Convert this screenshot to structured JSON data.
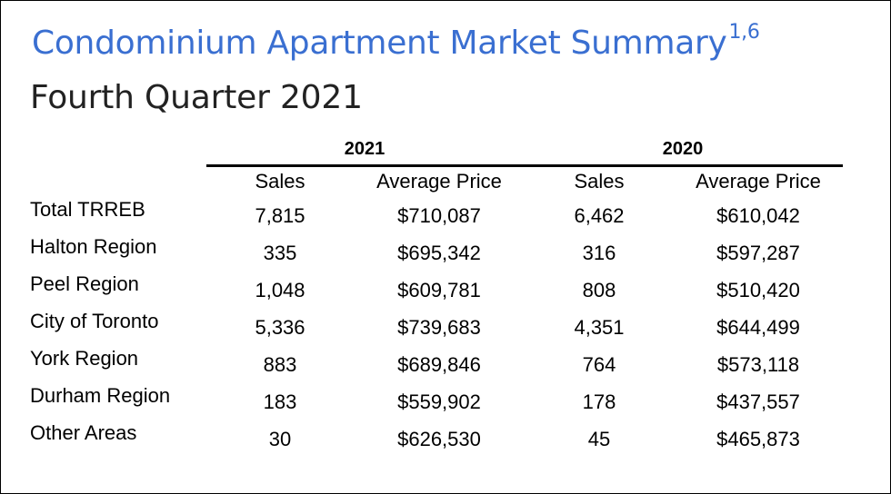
{
  "title": "Condominium Apartment Market Summary",
  "title_superscript": "1,6",
  "subtitle": "Fourth Quarter 2021",
  "years": [
    "2021",
    "2020"
  ],
  "column_headers": [
    "Sales",
    "Average Price",
    "Sales",
    "Average Price"
  ],
  "rows": [
    {
      "region": "Total TRREB",
      "sales_2021": "7,815",
      "avg_2021": "$710,087",
      "sales_2020": "6,462",
      "avg_2020": "$610,042"
    },
    {
      "region": "Halton Region",
      "sales_2021": "335",
      "avg_2021": "$695,342",
      "sales_2020": "316",
      "avg_2020": "$597,287"
    },
    {
      "region": "Peel Region",
      "sales_2021": "1,048",
      "avg_2021": "$609,781",
      "sales_2020": "808",
      "avg_2020": "$510,420"
    },
    {
      "region": "City of Toronto",
      "sales_2021": "5,336",
      "avg_2021": "$739,683",
      "sales_2020": "4,351",
      "avg_2020": "$644,499"
    },
    {
      "region": "York Region",
      "sales_2021": "883",
      "avg_2021": "$689,846",
      "sales_2020": "764",
      "avg_2020": "$573,118"
    },
    {
      "region": "Durham Region",
      "sales_2021": "183",
      "avg_2021": "$559,902",
      "sales_2020": "178",
      "avg_2020": "$437,557"
    },
    {
      "region": "Other Areas",
      "sales_2021": "30",
      "avg_2021": "$626,530",
      "sales_2020": "45",
      "avg_2020": "$465,873"
    }
  ],
  "colors": {
    "title": "#3a6fd1",
    "subtitle": "#222222",
    "text": "#000000"
  }
}
